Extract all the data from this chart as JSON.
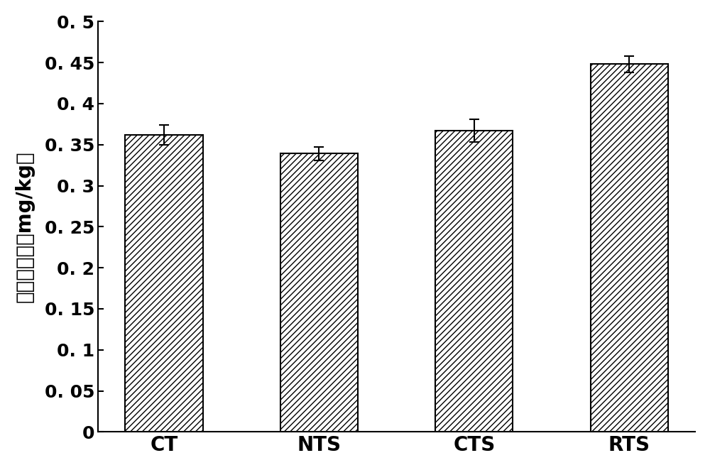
{
  "categories": [
    "CT",
    "NTS",
    "CTS",
    "RTS"
  ],
  "values": [
    0.362,
    0.339,
    0.367,
    0.448
  ],
  "errors": [
    0.012,
    0.008,
    0.014,
    0.01
  ],
  "bar_color": "#ffffff",
  "bar_edgecolor": "#000000",
  "hatch": "////",
  "ylabel": "土壤镝含量（mg/kg）",
  "ylim": [
    0,
    0.5
  ],
  "yticks": [
    0,
    0.05,
    0.1,
    0.15,
    0.2,
    0.25,
    0.3,
    0.35,
    0.4,
    0.45,
    0.5
  ],
  "ytick_labels": [
    "0",
    "0. 05",
    "0. 1",
    "0. 15",
    "0. 2",
    "0. 25",
    "0. 3",
    "0. 35",
    "0. 4",
    "0. 45",
    "0. 5"
  ],
  "background_color": "#ffffff",
  "bar_width": 0.5,
  "label_fontsize": 20,
  "tick_fontsize": 18,
  "xtick_fontsize": 20
}
